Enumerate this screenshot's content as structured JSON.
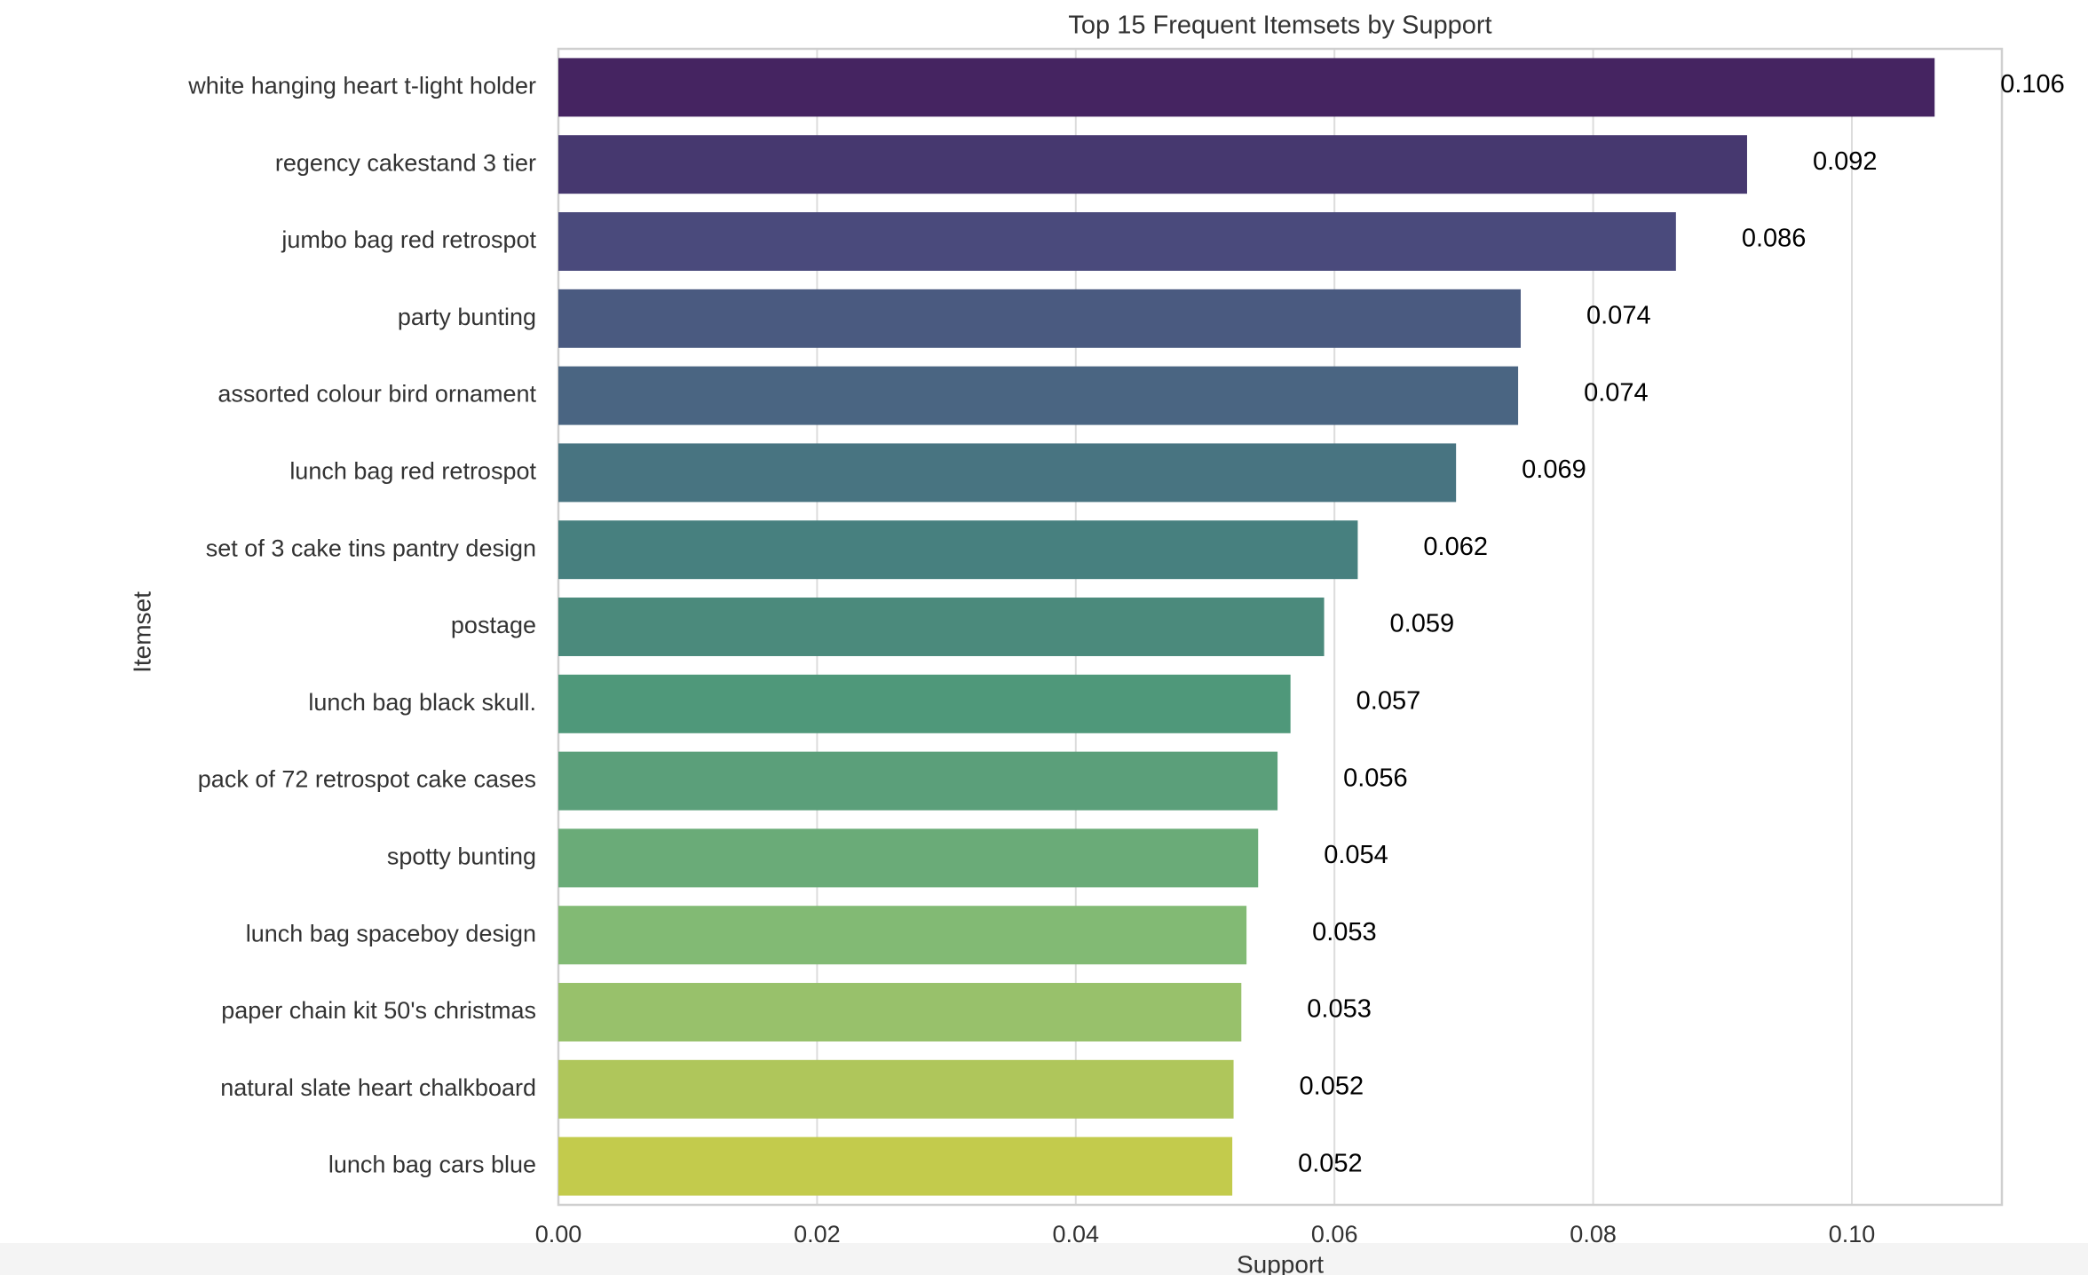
{
  "chart_data": {
    "type": "barh",
    "title": "Top 15 Frequent Itemsets by Support",
    "xlabel": "Support",
    "ylabel": "Itemset",
    "categories": [
      "white hanging heart t-light holder",
      "regency cakestand 3 tier",
      "jumbo bag red retrospot",
      "party bunting",
      "assorted colour bird ornament",
      "lunch bag red retrospot",
      "set of 3 cake tins pantry design",
      "postage",
      "lunch bag  black skull.",
      "pack of 72 retrospot cake cases",
      "spotty bunting",
      "lunch bag spaceboy design",
      "paper chain kit 50's christmas",
      "natural slate heart chalkboard",
      "lunch bag cars blue"
    ],
    "values": [
      0.1064,
      0.0919,
      0.0864,
      0.0744,
      0.0742,
      0.0694,
      0.0618,
      0.0592,
      0.0566,
      0.0556,
      0.0541,
      0.0532,
      0.0528,
      0.0522,
      0.0521
    ],
    "value_labels": [
      "0.106",
      "0.092",
      "0.086",
      "0.074",
      "0.074",
      "0.069",
      "0.062",
      "0.059",
      "0.057",
      "0.056",
      "0.054",
      "0.053",
      "0.053",
      "0.052",
      "0.052"
    ],
    "colors": [
      "#452461",
      "#46386f",
      "#4a4a7c",
      "#4a5a80",
      "#4a6582",
      "#487481",
      "#47807f",
      "#4b8a7c",
      "#4f987a",
      "#5b9f7a",
      "#6aab78",
      "#82ba74",
      "#98c16b",
      "#afc65b",
      "#c3cb4c"
    ],
    "xlim": [
      0,
      0.1116
    ],
    "xticks": [
      {
        "value": 0,
        "label": "0.00"
      },
      {
        "value": 0.02,
        "label": "0.02"
      },
      {
        "value": 0.04,
        "label": "0.04"
      },
      {
        "value": 0.06,
        "label": "0.06"
      },
      {
        "value": 0.08,
        "label": "0.08"
      },
      {
        "value": 0.1,
        "label": "0.10"
      }
    ],
    "grid": true
  }
}
